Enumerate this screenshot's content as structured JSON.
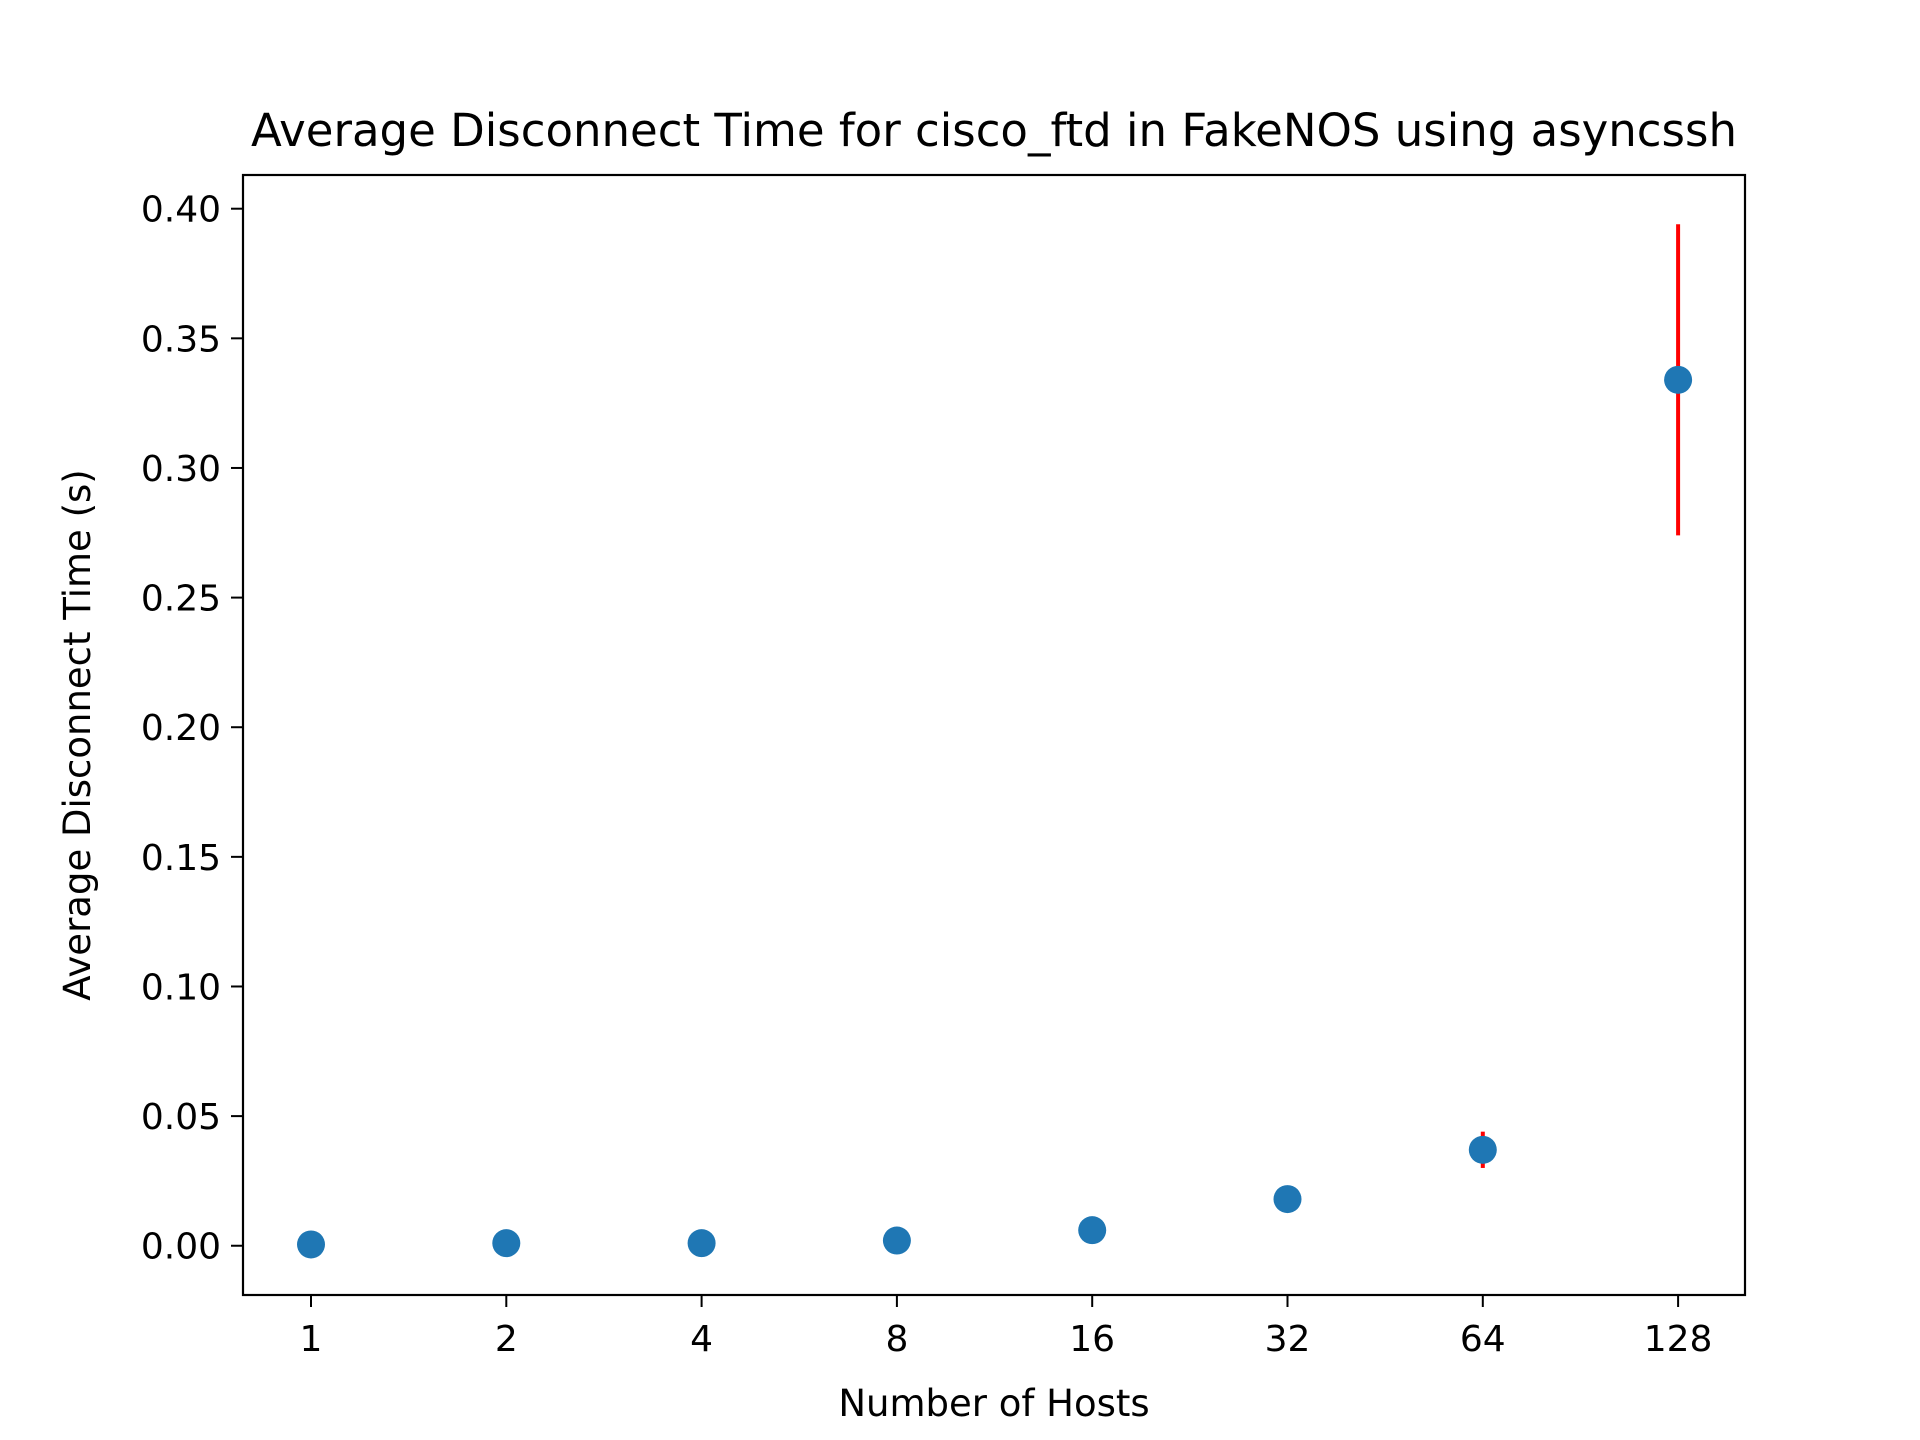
{
  "chart_data": {
    "type": "scatter",
    "title": "Average Disconnect Time for cisco_ftd in FakeNOS using asyncssh",
    "xlabel": "Number of Hosts",
    "ylabel": "Average Disconnect Time (s)",
    "x_scale": "log2",
    "x_ticks": [
      "1",
      "2",
      "4",
      "8",
      "16",
      "32",
      "64",
      "128"
    ],
    "y_ticks": [
      "0.00",
      "0.05",
      "0.10",
      "0.15",
      "0.20",
      "0.25",
      "0.30",
      "0.35",
      "0.40"
    ],
    "ylim": [
      -0.019,
      0.413
    ],
    "grid": false,
    "series": [
      {
        "x": [
          1,
          2,
          4,
          8,
          16,
          32,
          64,
          128
        ],
        "y": [
          0.0005,
          0.001,
          0.001,
          0.002,
          0.006,
          0.018,
          0.037,
          0.334
        ],
        "yerr": [
          0.0,
          0.0,
          0.0,
          0.0,
          0.0,
          0.0,
          0.007,
          0.06
        ]
      }
    ],
    "colors": {
      "marker": "#1f77b4",
      "errorbar": "#ff0000"
    }
  }
}
